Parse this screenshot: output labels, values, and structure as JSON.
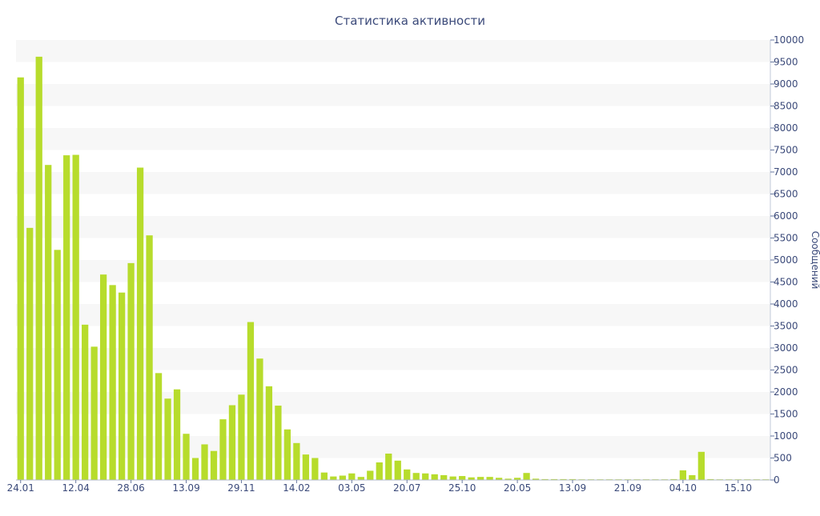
{
  "chart_data": {
    "type": "bar",
    "title": "Статистика активности",
    "ylabel": "Сообщений",
    "xlabel": "",
    "ylim": [
      0,
      10000
    ],
    "y_ticks": [
      0,
      500,
      1000,
      1500,
      2000,
      2500,
      3000,
      3500,
      4000,
      4500,
      5000,
      5500,
      6000,
      6500,
      7000,
      7500,
      8000,
      8500,
      9000,
      9500,
      10000
    ],
    "y_axis_position": "right",
    "grid": "alternating horizontal bands",
    "x_tick_labels": [
      {
        "index": 0,
        "label": "24.01"
      },
      {
        "index": 6,
        "label": "12.04"
      },
      {
        "index": 12,
        "label": "28.06"
      },
      {
        "index": 18,
        "label": "13.09"
      },
      {
        "index": 24,
        "label": "29.11"
      },
      {
        "index": 30,
        "label": "14.02"
      },
      {
        "index": 36,
        "label": "03.05"
      },
      {
        "index": 42,
        "label": "20.07"
      },
      {
        "index": 48,
        "label": "25.10"
      },
      {
        "index": 54,
        "label": "20.05"
      },
      {
        "index": 60,
        "label": "13.09"
      },
      {
        "index": 66,
        "label": "21.09"
      },
      {
        "index": 72,
        "label": "04.10"
      },
      {
        "index": 78,
        "label": "15.10"
      }
    ],
    "values": [
      9150,
      5730,
      9620,
      7160,
      5230,
      7380,
      7390,
      3530,
      3030,
      4670,
      4430,
      4260,
      4930,
      7100,
      5560,
      2430,
      1850,
      2060,
      1050,
      500,
      810,
      660,
      1380,
      1700,
      1940,
      3590,
      2760,
      2130,
      1690,
      1150,
      840,
      580,
      500,
      170,
      80,
      100,
      150,
      70,
      210,
      400,
      600,
      440,
      240,
      160,
      150,
      130,
      110,
      80,
      90,
      60,
      70,
      70,
      50,
      30,
      50,
      160,
      30,
      20,
      20,
      20,
      20,
      15,
      15,
      15,
      15,
      15,
      15,
      15,
      15,
      15,
      15,
      20,
      220,
      110,
      640,
      20,
      15,
      15,
      15,
      15,
      15,
      15
    ],
    "bar_color": "#b7dc2c",
    "band_color": "#f7f7f7",
    "text_color": "#3b4a7a"
  }
}
